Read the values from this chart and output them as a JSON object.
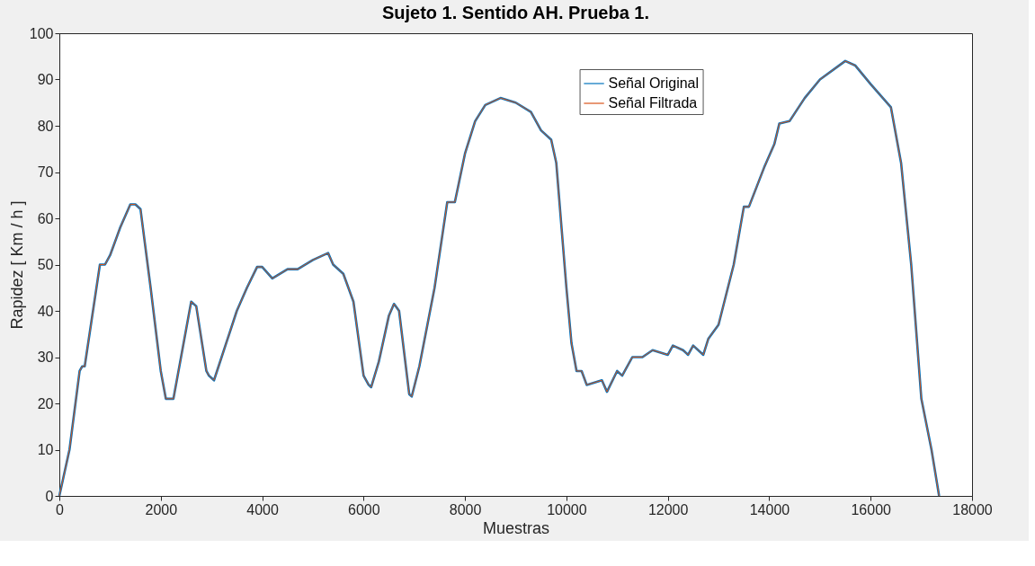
{
  "chart_data": {
    "type": "line",
    "title": "Sujeto 1. Sentido AH. Prueba 1.",
    "xlabel": "Muestras",
    "ylabel": "Rapidez [ Km / h ]",
    "x": [
      0,
      200,
      400,
      450,
      500,
      800,
      900,
      1000,
      1200,
      1400,
      1500,
      1600,
      1800,
      2000,
      2100,
      2250,
      2400,
      2600,
      2700,
      2900,
      2950,
      3050,
      3200,
      3500,
      3700,
      3900,
      4000,
      4200,
      4500,
      4700,
      5000,
      5300,
      5400,
      5600,
      5800,
      6000,
      6100,
      6150,
      6300,
      6500,
      6600,
      6700,
      6900,
      6950,
      7100,
      7400,
      7650,
      7800,
      8000,
      8200,
      8400,
      8700,
      9000,
      9300,
      9500,
      9700,
      9800,
      10000,
      10100,
      10200,
      10300,
      10400,
      10700,
      10800,
      11000,
      11100,
      11300,
      11500,
      11700,
      12000,
      12100,
      12300,
      12400,
      12500,
      12700,
      12800,
      13000,
      13300,
      13500,
      13600,
      13900,
      14100,
      14200,
      14400,
      14700,
      15000,
      15500,
      15700,
      16000,
      16400,
      16600,
      16800,
      17000,
      17200,
      17350
    ],
    "series": [
      {
        "name": "Señal Original",
        "color": "#0072bd",
        "values": [
          0,
          10,
          27,
          28,
          28,
          50,
          50,
          52,
          58,
          63,
          63,
          62,
          45,
          27,
          21,
          21,
          30,
          42,
          41,
          27,
          26,
          25,
          30,
          40,
          45,
          49.5,
          49.5,
          47,
          49,
          49,
          51,
          52.5,
          50,
          48,
          42,
          26,
          24,
          23.5,
          29,
          39,
          41.5,
          40,
          22,
          21.5,
          28,
          45,
          63.5,
          63.5,
          74,
          81,
          84.5,
          86,
          85,
          83,
          79,
          77,
          72,
          45,
          33,
          27,
          27,
          24,
          25,
          22.5,
          27,
          26,
          30,
          30,
          31.5,
          30.5,
          32.5,
          31.5,
          30.5,
          32.5,
          30.5,
          34,
          37,
          50,
          62.5,
          62.5,
          71,
          76,
          80.5,
          81,
          86,
          90,
          94,
          93,
          89,
          84,
          72,
          50,
          21,
          10,
          0
        ]
      },
      {
        "name": "Señal Filtrada",
        "color": "#d95319",
        "values": [
          0,
          10,
          27,
          28,
          28,
          50,
          50,
          52,
          58,
          63,
          63,
          62,
          45,
          27,
          21,
          21,
          30,
          42,
          41,
          27,
          26,
          25,
          30,
          40,
          45,
          49.5,
          49.5,
          47,
          49,
          49,
          51,
          52.5,
          50,
          48,
          42,
          26,
          24,
          23.5,
          29,
          39,
          41.5,
          40,
          22,
          21.5,
          28,
          45,
          63.5,
          63.5,
          74,
          81,
          84.5,
          86,
          85,
          83,
          79,
          77,
          72,
          45,
          33,
          27,
          27,
          24,
          25,
          22.5,
          27,
          26,
          30,
          30,
          31.5,
          30.5,
          32.5,
          31.5,
          30.5,
          32.5,
          30.5,
          34,
          37,
          50,
          62.5,
          62.5,
          71,
          76,
          80.5,
          81,
          86,
          90,
          94,
          93,
          89,
          84,
          72,
          50,
          21,
          10,
          0
        ]
      }
    ],
    "xlim": [
      0,
      18000
    ],
    "xticks": [
      0,
      2000,
      4000,
      6000,
      8000,
      10000,
      12000,
      14000,
      16000,
      18000
    ],
    "ylim": [
      0,
      100
    ],
    "yticks": [
      0,
      10,
      20,
      30,
      40,
      50,
      60,
      70,
      80,
      90,
      100
    ],
    "grid": false,
    "legend": "top",
    "marker": "none",
    "line_style": "solid"
  }
}
